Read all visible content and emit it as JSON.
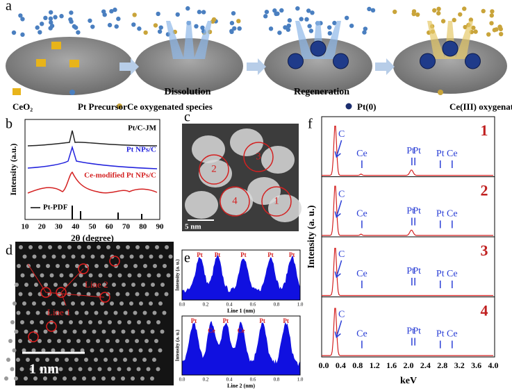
{
  "panel_labels": [
    "a",
    "b",
    "c",
    "d",
    "e",
    "f"
  ],
  "a": {
    "steps": [
      "Dissolution",
      "Regeneration"
    ],
    "legend": [
      "CeO₂",
      "Pt Precursor",
      "Ce oxygenated species",
      "Pt(0)",
      "Ce(III) oxygenated species"
    ]
  },
  "b": {
    "series": [
      "Pt/C-JM",
      "Pt NPs/C",
      "Ce-modified Pt NPs/C",
      "Pt-PDF"
    ],
    "ylabel": "Intensity (a.u.)",
    "xlabel": "2θ (degree)",
    "xticks": [
      "10",
      "20",
      "30",
      "40",
      "50",
      "60",
      "70",
      "80",
      "90"
    ]
  },
  "c": {
    "regions": [
      "1",
      "2",
      "3",
      "4"
    ],
    "scale": "5 nm"
  },
  "d": {
    "lines": [
      "Line 2",
      "Line 1"
    ],
    "scale": "1 nm"
  },
  "e": {
    "ylabel": "Intensity (a. u.)",
    "xticks": [
      "0.0",
      "0.2",
      "0.4",
      "0.6",
      "0.8",
      "1.0"
    ],
    "profiles": [
      {
        "xlabel": "Line 1 (nm)",
        "peaks": [
          "Pt",
          "Pt",
          "Pt",
          "Pt",
          "Pt"
        ]
      },
      {
        "xlabel": "Line 2 (nm)",
        "peaks": [
          "Pt",
          "Ce",
          "Pt",
          "Ce",
          "Pt",
          "Pt"
        ]
      }
    ]
  },
  "f": {
    "ylabel": "Intensity (a. u.)",
    "xlabel": "keV",
    "xticks": [
      "0.0",
      "0.4",
      "0.8",
      "1.2",
      "1.6",
      "2.0",
      "2.4",
      "2.8",
      "3.2",
      "3.6",
      "4.0"
    ],
    "spectra": [
      {
        "name": "1",
        "labels": [
          "C",
          "Ce",
          "Pt",
          "Pt",
          "Pt",
          "Ce"
        ]
      },
      {
        "name": "2",
        "labels": [
          "C",
          "Ce",
          "Pt",
          "Pt",
          "Pt",
          "Ce"
        ]
      },
      {
        "name": "3",
        "labels": [
          "C",
          "Ce",
          "Pt",
          "Pt",
          "Pt",
          "Ce"
        ]
      },
      {
        "name": "4",
        "labels": [
          "C",
          "Ce",
          "Pt",
          "Pt",
          "Pt",
          "Ce"
        ]
      }
    ]
  }
}
